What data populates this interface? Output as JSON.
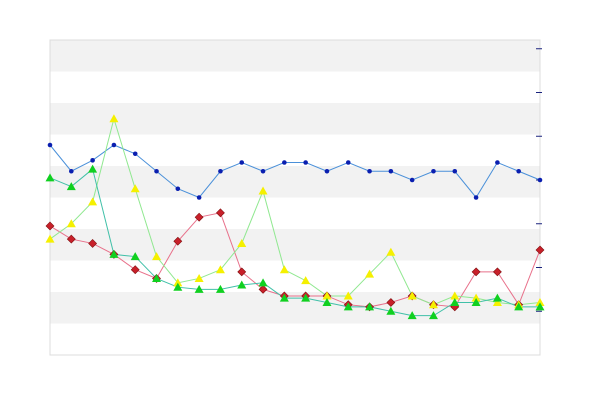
{
  "chart_data": {
    "type": "line",
    "categories": [
      null,
      null,
      null,
      null,
      null,
      null,
      null,
      null,
      null,
      null,
      null,
      null,
      null,
      null,
      null,
      null,
      null,
      null,
      null,
      null,
      null,
      null,
      null,
      null
    ],
    "ylim": [
      0,
      7.2
    ],
    "yticks": [
      1,
      2,
      3,
      4,
      5,
      6,
      7
    ],
    "y_axis_side": "right",
    "striped_background": true,
    "series": [
      {
        "color": "#0a1fb0",
        "line_color": "#4a90d9",
        "marker": "circle",
        "values": [
          4.8,
          4.2,
          4.45,
          4.8,
          4.6,
          4.2,
          3.8,
          3.6,
          4.2,
          4.4,
          4.2,
          4.4,
          4.4,
          4.2,
          4.4,
          4.2,
          4.2,
          4.0,
          4.2,
          4.2,
          3.6,
          4.4,
          4.2,
          4.0
        ]
      },
      {
        "color": "#c8202a",
        "line_color": "#e8708a",
        "marker": "diamond",
        "values": [
          2.95,
          2.65,
          2.55,
          2.3,
          1.95,
          1.75,
          2.6,
          3.15,
          3.25,
          1.9,
          1.5,
          1.35,
          1.35,
          1.35,
          1.15,
          1.1,
          1.2,
          1.35,
          1.15,
          1.1,
          1.9,
          1.9,
          1.15,
          2.4
        ]
      },
      {
        "color": "#f5f000",
        "line_color": "#90e890",
        "marker": "triangle",
        "values": [
          2.65,
          3.0,
          3.5,
          5.4,
          3.8,
          2.25,
          1.65,
          1.75,
          1.95,
          2.55,
          3.75,
          1.95,
          1.7,
          1.35,
          1.35,
          1.85,
          2.35,
          1.35,
          1.15,
          1.35,
          1.3,
          1.2,
          1.15,
          1.2
        ]
      },
      {
        "color": "#10d020",
        "line_color": "#40c0a8",
        "marker": "triangle",
        "values": [
          4.05,
          3.85,
          4.25,
          2.3,
          2.25,
          1.75,
          1.55,
          1.5,
          1.5,
          1.6,
          1.65,
          1.3,
          1.3,
          1.2,
          1.1,
          1.1,
          1.0,
          0.9,
          0.9,
          1.2,
          1.2,
          1.3,
          1.1,
          1.1
        ]
      }
    ]
  }
}
